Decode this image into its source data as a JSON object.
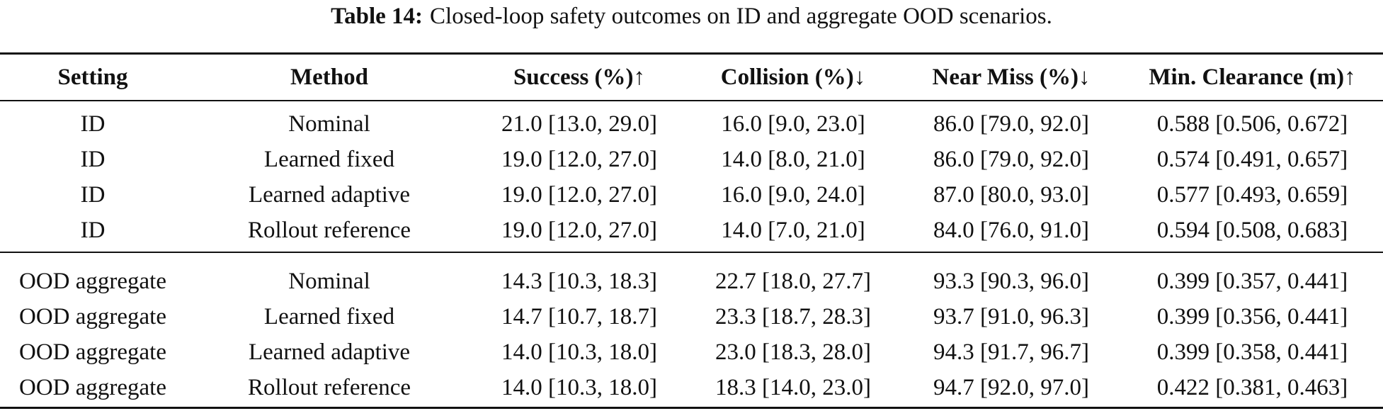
{
  "caption": {
    "label": "Table 14:",
    "text": "Closed-loop safety outcomes on ID and aggregate OOD scenarios."
  },
  "columns": [
    "Setting",
    "Method",
    "Success (%)↑",
    "Collision (%)↓",
    "Near Miss (%)↓",
    "Min. Clearance (m)↑"
  ],
  "groups": [
    {
      "rows": [
        [
          "ID",
          "Nominal",
          "21.0 [13.0, 29.0]",
          "16.0 [9.0, 23.0]",
          "86.0 [79.0, 92.0]",
          "0.588 [0.506, 0.672]"
        ],
        [
          "ID",
          "Learned fixed",
          "19.0 [12.0, 27.0]",
          "14.0 [8.0, 21.0]",
          "86.0 [79.0, 92.0]",
          "0.574 [0.491, 0.657]"
        ],
        [
          "ID",
          "Learned adaptive",
          "19.0 [12.0, 27.0]",
          "16.0 [9.0, 24.0]",
          "87.0 [80.0, 93.0]",
          "0.577 [0.493, 0.659]"
        ],
        [
          "ID",
          "Rollout reference",
          "19.0 [12.0, 27.0]",
          "14.0 [7.0, 21.0]",
          "84.0 [76.0, 91.0]",
          "0.594 [0.508, 0.683]"
        ]
      ]
    },
    {
      "rows": [
        [
          "OOD aggregate",
          "Nominal",
          "14.3 [10.3, 18.3]",
          "22.7 [18.0, 27.7]",
          "93.3 [90.3, 96.0]",
          "0.399 [0.357, 0.441]"
        ],
        [
          "OOD aggregate",
          "Learned fixed",
          "14.7 [10.7, 18.7]",
          "23.3 [18.7, 28.3]",
          "93.7 [91.0, 96.3]",
          "0.399 [0.356, 0.441]"
        ],
        [
          "OOD aggregate",
          "Learned adaptive",
          "14.0 [10.3, 18.0]",
          "23.0 [18.3, 28.0]",
          "94.3 [91.7, 96.7]",
          "0.399 [0.358, 0.441]"
        ],
        [
          "OOD aggregate",
          "Rollout reference",
          "14.0 [10.3, 18.0]",
          "18.3 [14.0, 23.0]",
          "94.7 [92.0, 97.0]",
          "0.422 [0.381, 0.463]"
        ]
      ]
    }
  ]
}
